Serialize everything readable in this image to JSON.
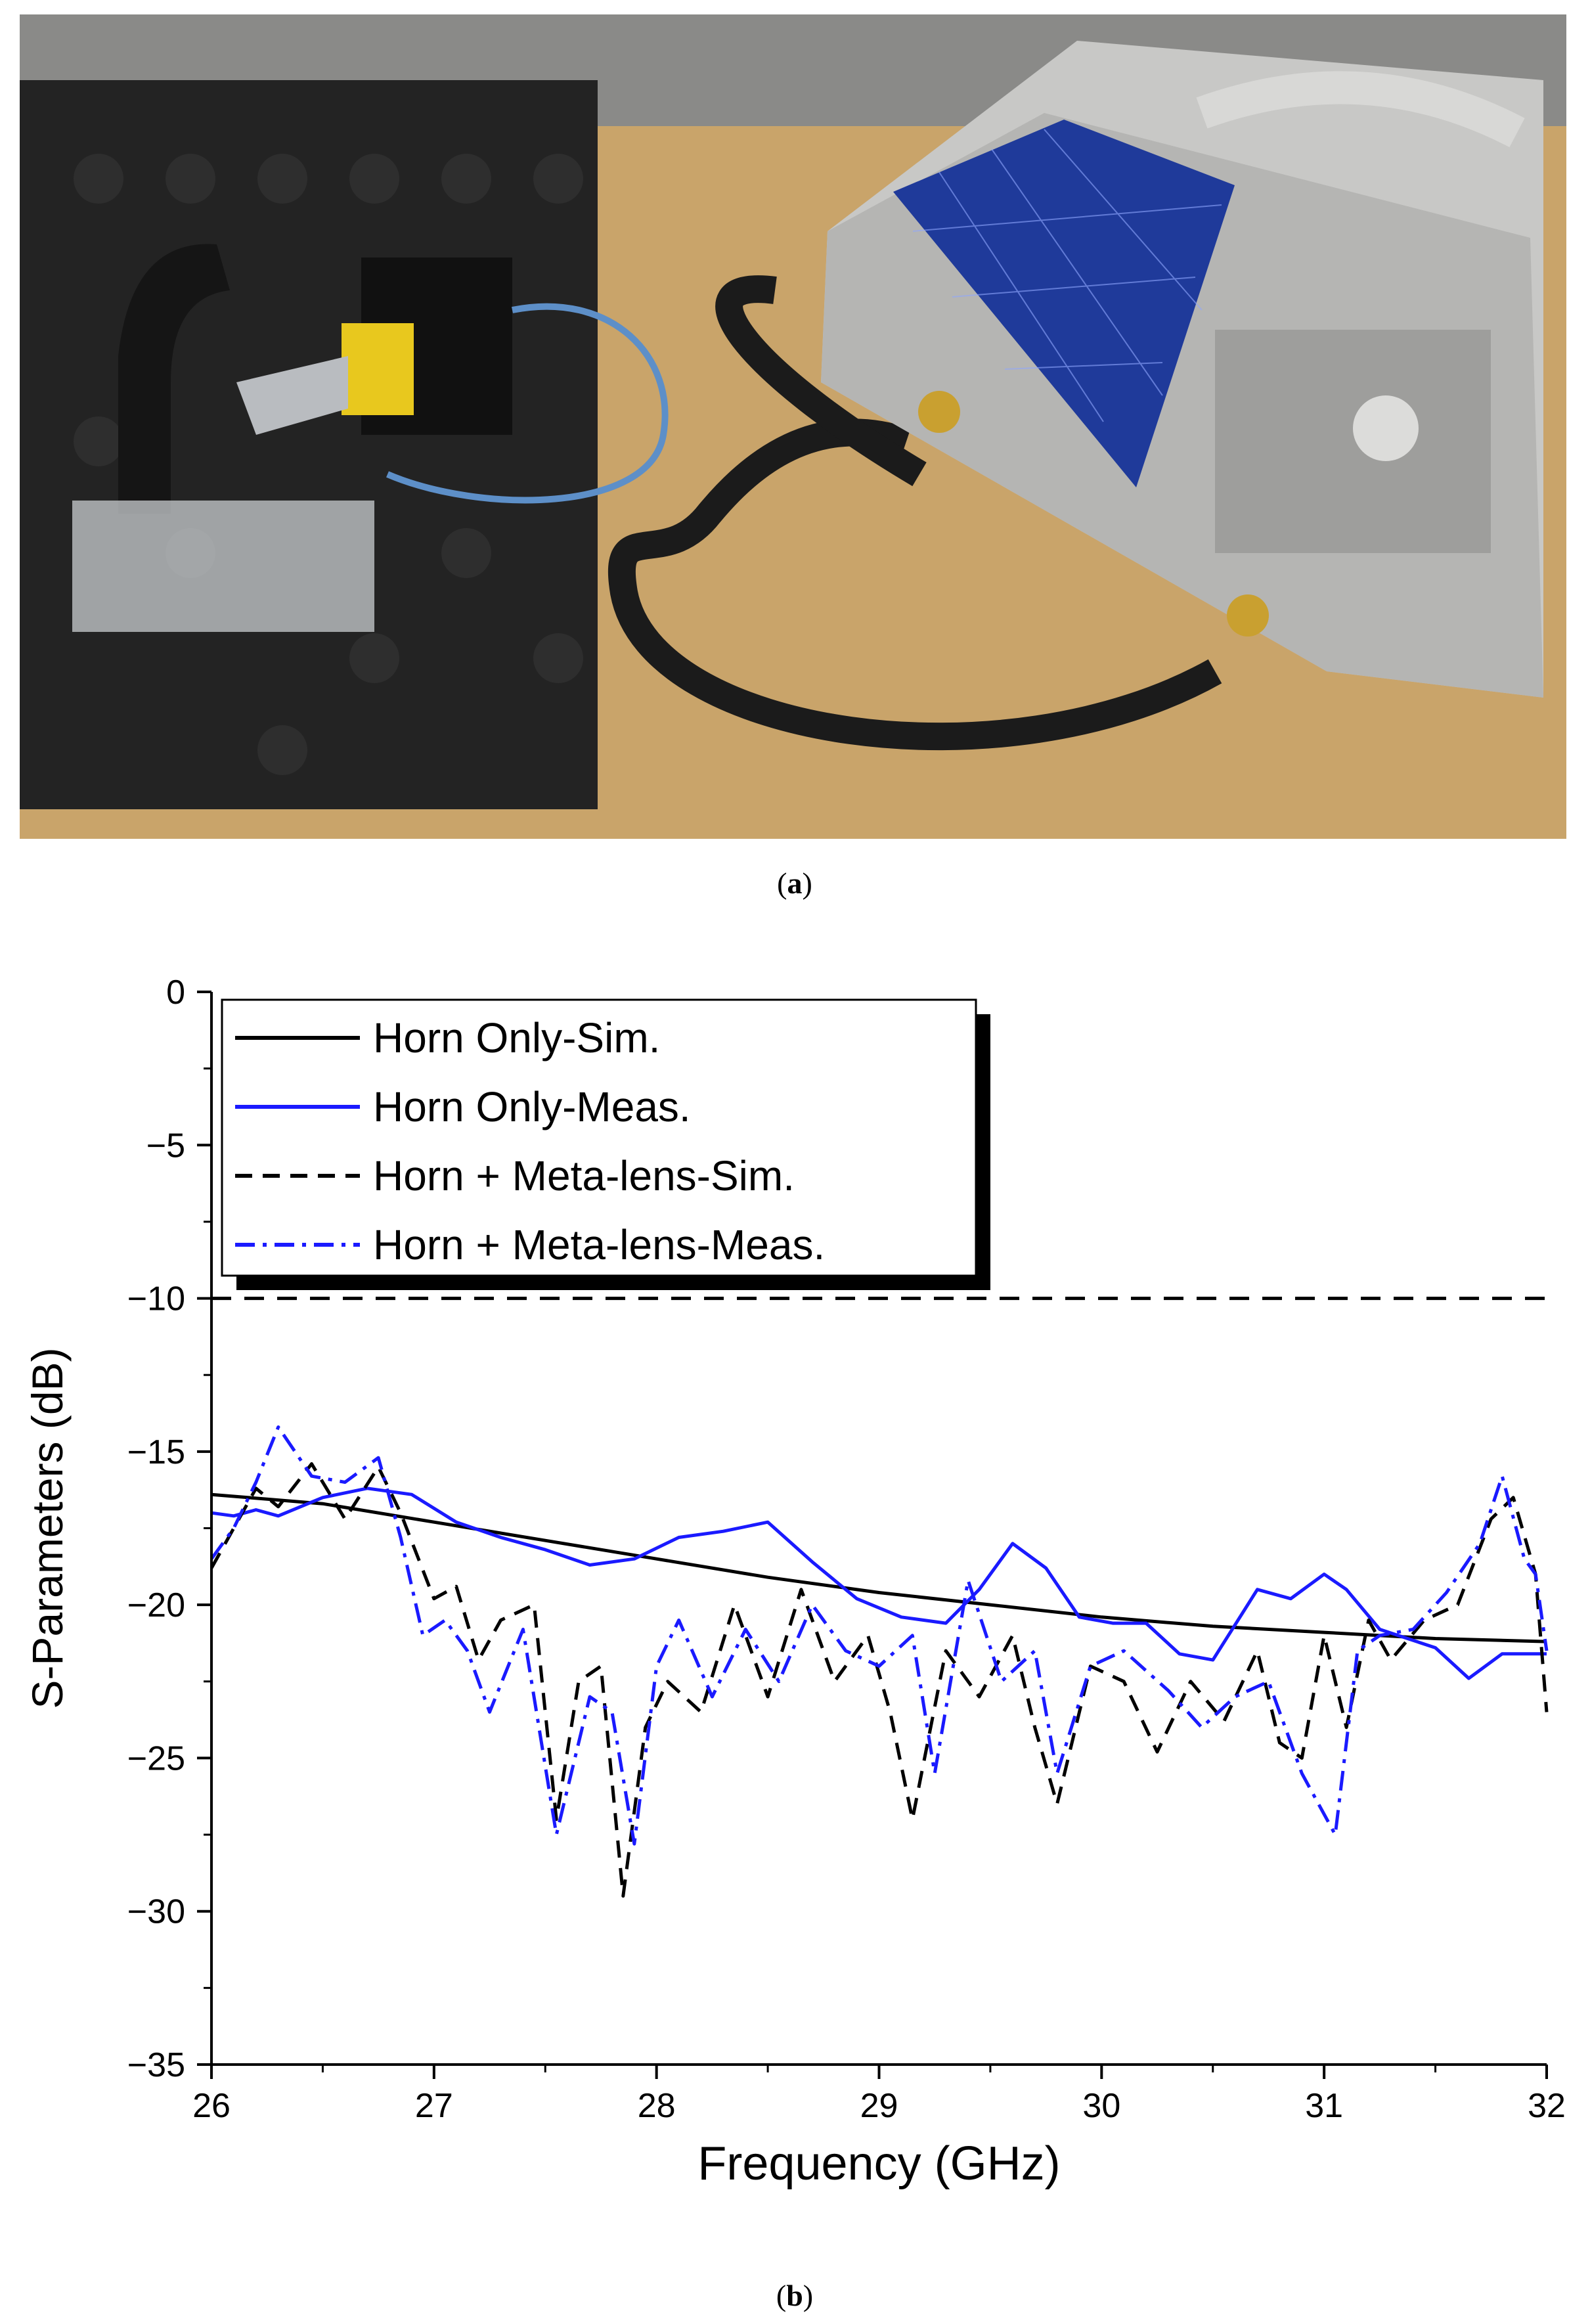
{
  "captions": {
    "a": "a",
    "b": "b"
  },
  "chart_data": {
    "type": "line",
    "xlabel": "Frequency (GHz)",
    "ylabel": "S-Parameters (dB)",
    "xlim": [
      26,
      32
    ],
    "ylim": [
      -35,
      0
    ],
    "xticks": [
      26,
      27,
      28,
      29,
      30,
      31,
      32
    ],
    "yticks": [
      0,
      -5,
      -10,
      -15,
      -20,
      -25,
      -30,
      -35
    ],
    "ytick_labels": [
      "0",
      "−5",
      "−10",
      "−15",
      "−20",
      "−25",
      "−30",
      "−35"
    ],
    "legend_position": "top-left",
    "reference_line": {
      "y": -10,
      "style": "dashed",
      "color": "#000000"
    },
    "series": [
      {
        "name": "Horn Only-Sim.",
        "color": "#000000",
        "dash": "solid",
        "x": [
          26,
          26.5,
          27,
          27.5,
          28,
          28.5,
          29,
          29.5,
          30,
          30.5,
          31,
          31.5,
          32
        ],
        "y": [
          -16.4,
          -16.7,
          -17.3,
          -17.9,
          -18.5,
          -19.1,
          -19.6,
          -20.0,
          -20.4,
          -20.7,
          -20.9,
          -21.1,
          -21.2
        ]
      },
      {
        "name": "Horn Only-Meas.",
        "color": "#1a1aff",
        "dash": "solid",
        "x": [
          26,
          26.1,
          26.2,
          26.3,
          26.5,
          26.7,
          26.9,
          27.1,
          27.3,
          27.5,
          27.7,
          27.9,
          28.1,
          28.3,
          28.5,
          28.7,
          28.9,
          29.1,
          29.3,
          29.45,
          29.6,
          29.75,
          29.9,
          30.05,
          30.2,
          30.35,
          30.5,
          30.7,
          30.85,
          31.0,
          31.1,
          31.25,
          31.5,
          31.65,
          31.8,
          32.0
        ],
        "y": [
          -17.0,
          -17.1,
          -16.9,
          -17.1,
          -16.5,
          -16.2,
          -16.4,
          -17.3,
          -17.8,
          -18.2,
          -18.7,
          -18.5,
          -17.8,
          -17.6,
          -17.3,
          -18.6,
          -19.8,
          -20.4,
          -20.6,
          -19.5,
          -18.0,
          -18.8,
          -20.4,
          -20.6,
          -20.6,
          -21.6,
          -21.8,
          -19.5,
          -19.8,
          -19.0,
          -19.5,
          -20.8,
          -21.4,
          -22.4,
          -21.6,
          -21.6
        ]
      },
      {
        "name": "Horn + Meta-lens-Sim.",
        "color": "#000000",
        "dash": "dashed",
        "x": [
          26,
          26.1,
          26.2,
          26.3,
          26.45,
          26.6,
          26.75,
          26.85,
          27.0,
          27.1,
          27.2,
          27.3,
          27.45,
          27.55,
          27.65,
          27.75,
          27.85,
          27.95,
          28.05,
          28.2,
          28.35,
          28.5,
          28.65,
          28.8,
          28.95,
          29.05,
          29.15,
          29.3,
          29.45,
          29.6,
          29.7,
          29.8,
          29.95,
          30.1,
          30.25,
          30.4,
          30.55,
          30.7,
          30.8,
          30.9,
          31.0,
          31.1,
          31.2,
          31.3,
          31.45,
          31.6,
          31.75,
          31.85,
          31.95,
          32.0
        ],
        "y": [
          -18.8,
          -17.5,
          -16.2,
          -16.8,
          -15.4,
          -17.2,
          -15.5,
          -17.0,
          -19.8,
          -19.4,
          -21.8,
          -20.5,
          -20.0,
          -27.0,
          -22.5,
          -22.0,
          -29.5,
          -24.0,
          -22.5,
          -23.5,
          -20.0,
          -23.0,
          -19.5,
          -22.5,
          -21.0,
          -23.5,
          -27.0,
          -21.5,
          -23.0,
          -21.0,
          -24.0,
          -26.5,
          -22.0,
          -22.5,
          -24.8,
          -22.5,
          -23.8,
          -21.5,
          -24.5,
          -25.0,
          -21.0,
          -24.0,
          -20.5,
          -21.8,
          -20.5,
          -20.0,
          -17.2,
          -16.5,
          -19.0,
          -23.5
        ]
      },
      {
        "name": "Horn + Meta-lens-Meas.",
        "color": "#1a1aff",
        "dash": "dashdot",
        "x": [
          26,
          26.1,
          26.2,
          26.3,
          26.45,
          26.6,
          26.75,
          26.85,
          26.95,
          27.05,
          27.15,
          27.25,
          27.4,
          27.55,
          27.7,
          27.8,
          27.9,
          28.0,
          28.1,
          28.25,
          28.4,
          28.55,
          28.7,
          28.85,
          29.0,
          29.15,
          29.25,
          29.4,
          29.55,
          29.7,
          29.8,
          29.95,
          30.1,
          30.3,
          30.45,
          30.6,
          30.75,
          30.9,
          31.05,
          31.15,
          31.25,
          31.4,
          31.55,
          31.7,
          31.8,
          31.9,
          31.95,
          32.0
        ],
        "y": [
          -18.5,
          -17.5,
          -16.0,
          -14.2,
          -15.8,
          -16.0,
          -15.2,
          -17.8,
          -21.0,
          -20.5,
          -21.5,
          -23.5,
          -20.8,
          -27.5,
          -23.0,
          -23.5,
          -27.8,
          -22.0,
          -20.5,
          -23.0,
          -20.8,
          -22.5,
          -20.0,
          -21.5,
          -22.0,
          -21.0,
          -25.5,
          -19.2,
          -22.5,
          -21.5,
          -25.5,
          -22.0,
          -21.5,
          -22.8,
          -24.0,
          -23.0,
          -22.5,
          -25.5,
          -27.5,
          -21.5,
          -21.0,
          -20.8,
          -19.6,
          -18.0,
          -15.8,
          -18.5,
          -19.0,
          -21.5
        ]
      }
    ]
  }
}
